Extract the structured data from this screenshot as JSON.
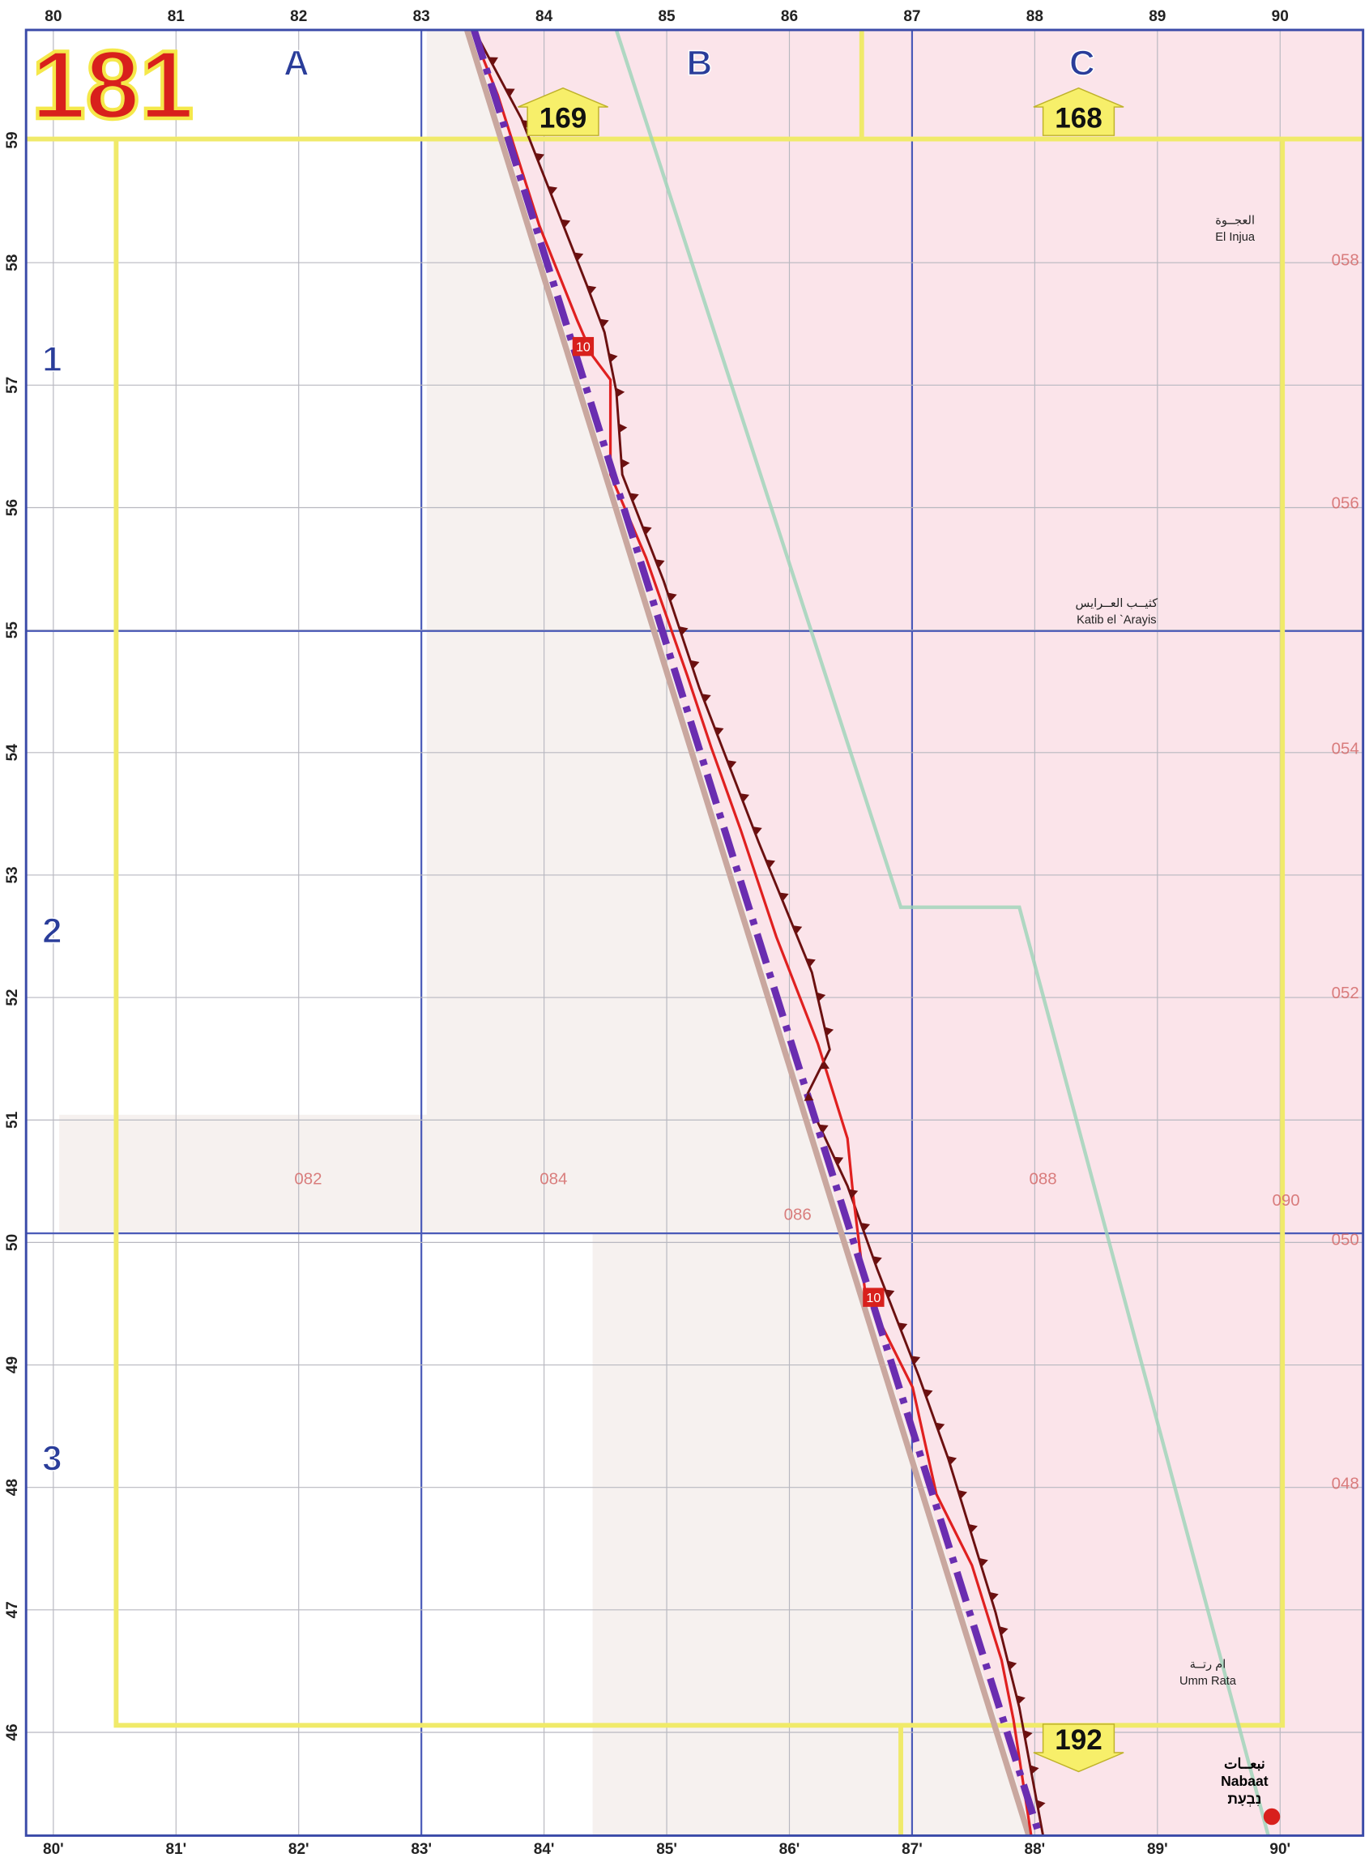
{
  "page_number": "181",
  "columns": [
    "A",
    "B",
    "C"
  ],
  "rows": [
    "1",
    "2",
    "3"
  ],
  "top_axis": [
    "80",
    "81",
    "82",
    "83",
    "84",
    "85",
    "86",
    "87",
    "88",
    "89",
    "90"
  ],
  "bottom_axis": [
    "80'",
    "81'",
    "82'",
    "83'",
    "84'",
    "85'",
    "86'",
    "87'",
    "88'",
    "89'",
    "90'"
  ],
  "left_axis": [
    "59",
    "58",
    "57",
    "56",
    "55",
    "54",
    "53",
    "52",
    "51",
    "50",
    "49",
    "48",
    "47",
    "46"
  ],
  "adjacent_pages": [
    "169",
    "168",
    "192"
  ],
  "grid_refs_right": [
    "058",
    "056",
    "054",
    "052",
    "050",
    "048"
  ],
  "grid_refs_bottom": [
    "082",
    "084",
    "086",
    "088",
    "090"
  ],
  "route_labels": [
    "10",
    "10"
  ],
  "places": [
    {
      "arabic": "العجــوة",
      "name": "El Injua"
    },
    {
      "arabic": "كثيــب العــرايس",
      "name": "Katib el `Arayis"
    },
    {
      "arabic": "ام رتــة",
      "name": "Umm Rata"
    },
    {
      "arabic": "نبعــات",
      "name": "Nabaat",
      "hebrew": "נִבְעָת"
    }
  ]
}
